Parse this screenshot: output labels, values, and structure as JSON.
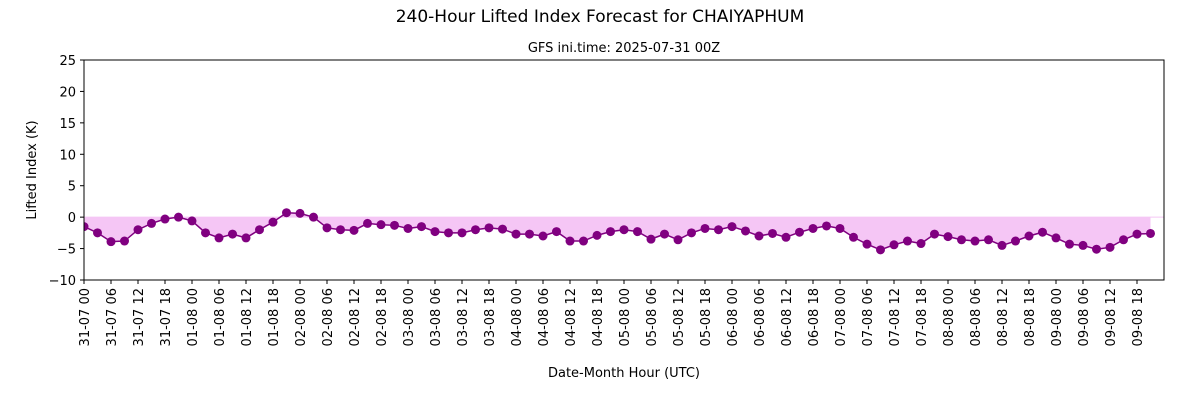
{
  "chart_data": {
    "type": "line",
    "title": "240-Hour Lifted Index Forecast for CHAIYAPHUM",
    "subtitle": "GFS ini.time: 2025-07-31 00Z",
    "xlabel": "Date-Month Hour (UTC)",
    "ylabel": "Lifted Index (K)",
    "ylim": [
      -10,
      25
    ],
    "yticks": [
      -10,
      -5,
      0,
      5,
      10,
      15,
      20,
      25
    ],
    "xlim": [
      0,
      240
    ],
    "xtick_hours": [
      0,
      6,
      12,
      18,
      24,
      30,
      36,
      42,
      48,
      54,
      60,
      66,
      72,
      78,
      84,
      90,
      96,
      102,
      108,
      114,
      120,
      126,
      132,
      138,
      144,
      150,
      156,
      162,
      168,
      174,
      180,
      186,
      192,
      198,
      204,
      210,
      216,
      222,
      228,
      234
    ],
    "xtick_labels": [
      "31-07 00",
      "31-07 06",
      "31-07 12",
      "31-07 18",
      "01-08 00",
      "01-08 06",
      "01-08 12",
      "01-08 18",
      "02-08 00",
      "02-08 06",
      "02-08 12",
      "02-08 18",
      "03-08 00",
      "03-08 06",
      "03-08 12",
      "03-08 18",
      "04-08 00",
      "04-08 06",
      "04-08 12",
      "04-08 18",
      "05-08 00",
      "05-08 06",
      "05-08 12",
      "05-08 18",
      "06-08 00",
      "06-08 06",
      "06-08 12",
      "06-08 18",
      "07-08 00",
      "07-08 06",
      "07-08 12",
      "07-08 18",
      "08-08 00",
      "08-08 06",
      "08-08 12",
      "08-08 18",
      "09-08 00",
      "09-08 06",
      "09-08 12",
      "09-08 18"
    ],
    "x_step_hours": 3,
    "values": [
      -1.5,
      -2.5,
      -3.9,
      -3.8,
      -2.0,
      -1.0,
      -0.3,
      0.0,
      -0.6,
      -2.5,
      -3.3,
      -2.7,
      -3.3,
      -2.0,
      -0.8,
      0.7,
      0.6,
      0.0,
      -1.7,
      -2.0,
      -2.1,
      -1.0,
      -1.2,
      -1.3,
      -1.8,
      -1.5,
      -2.3,
      -2.5,
      -2.5,
      -2.0,
      -1.7,
      -1.9,
      -2.7,
      -2.7,
      -3.0,
      -2.3,
      -3.8,
      -3.8,
      -2.9,
      -2.3,
      -2.0,
      -2.3,
      -3.5,
      -2.7,
      -3.6,
      -2.5,
      -1.8,
      -2.0,
      -1.5,
      -2.2,
      -3.0,
      -2.6,
      -3.2,
      -2.4,
      -1.8,
      -1.4,
      -1.8,
      -3.2,
      -4.3,
      -5.2,
      -4.4,
      -3.8,
      -4.2,
      -2.7,
      -3.1,
      -3.6,
      -3.8,
      -3.6,
      -4.5,
      -3.8,
      -3.0,
      -2.4,
      -3.3,
      -4.3,
      -4.5,
      -5.1,
      -4.8,
      -3.6,
      -2.7,
      -2.6
    ],
    "line_color": "#800080",
    "fill_color": "#f5c6f5",
    "grid": false,
    "legend": "none"
  }
}
